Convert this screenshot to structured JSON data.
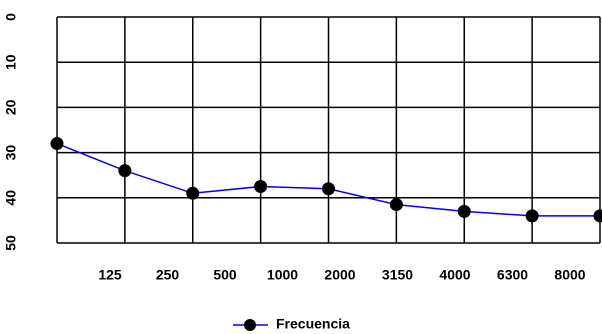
{
  "chart_data": {
    "type": "line",
    "categories": [
      "125",
      "250",
      "500",
      "1000",
      "2000",
      "3150",
      "4000",
      "6300",
      "8000"
    ],
    "series": [
      {
        "name": "Frecuencia",
        "color": "#0000ff",
        "values": [
          28,
          34,
          39,
          37.5,
          38,
          41.5,
          43,
          44,
          44
        ]
      }
    ],
    "ylim": [
      0,
      50
    ],
    "yticks": [
      0,
      10,
      20,
      30,
      40,
      50
    ],
    "y_inverted": true,
    "grid": true,
    "legend": "bottom"
  }
}
